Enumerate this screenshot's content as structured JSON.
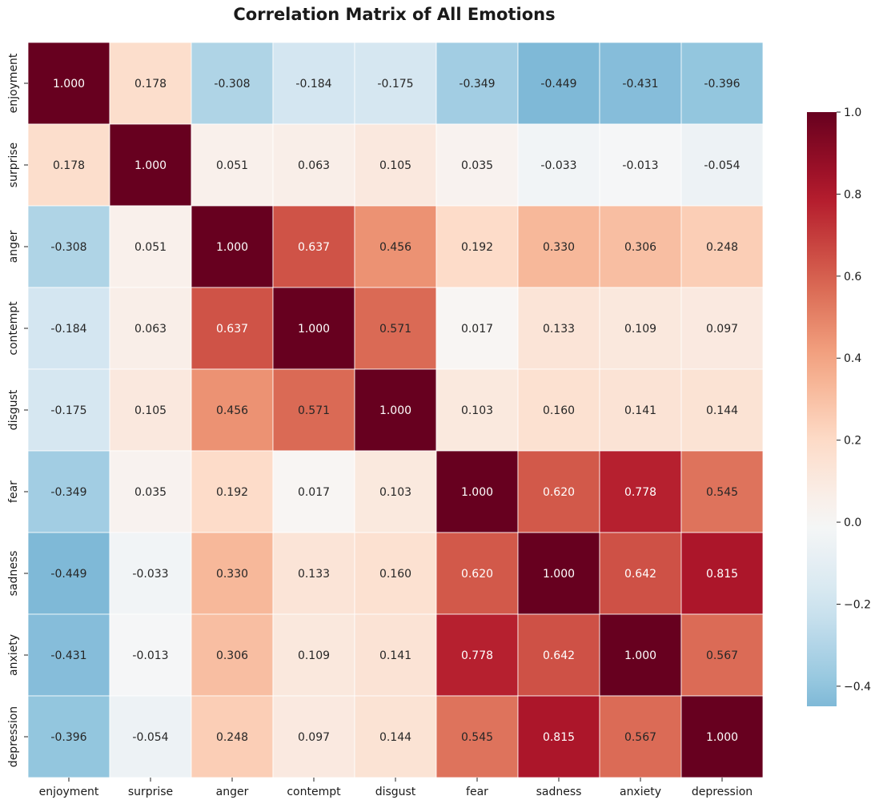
{
  "chart_data": {
    "type": "heatmap",
    "title": "Correlation Matrix of All Emotions",
    "labels": [
      "enjoyment",
      "surprise",
      "anger",
      "contempt",
      "disgust",
      "fear",
      "sadness",
      "anxiety",
      "depression"
    ],
    "matrix": [
      [
        1.0,
        0.178,
        -0.308,
        -0.184,
        -0.175,
        -0.349,
        -0.449,
        -0.431,
        -0.396
      ],
      [
        0.178,
        1.0,
        0.051,
        0.063,
        0.105,
        0.035,
        -0.033,
        -0.013,
        -0.054
      ],
      [
        -0.308,
        0.051,
        1.0,
        0.637,
        0.456,
        0.192,
        0.33,
        0.306,
        0.248
      ],
      [
        -0.184,
        0.063,
        0.637,
        1.0,
        0.571,
        0.017,
        0.133,
        0.109,
        0.097
      ],
      [
        -0.175,
        0.105,
        0.456,
        0.571,
        1.0,
        0.103,
        0.16,
        0.141,
        0.144
      ],
      [
        -0.349,
        0.035,
        0.192,
        0.017,
        0.103,
        1.0,
        0.62,
        0.778,
        0.545
      ],
      [
        -0.449,
        -0.033,
        0.33,
        0.133,
        0.16,
        0.62,
        1.0,
        0.642,
        0.815
      ],
      [
        -0.431,
        -0.013,
        0.306,
        0.109,
        0.141,
        0.778,
        0.642,
        1.0,
        0.567
      ],
      [
        -0.396,
        -0.054,
        0.248,
        0.097,
        0.144,
        0.545,
        0.815,
        0.567,
        1.0
      ]
    ],
    "value_format": "3 decimals",
    "colormap": "RdBu_r",
    "center": 0,
    "colorbar": {
      "range": [
        -0.449,
        1.0
      ],
      "ticks": [
        -0.4,
        -0.2,
        0.0,
        0.2,
        0.4,
        0.6,
        0.8,
        1.0
      ],
      "tick_labels": [
        "−0.4",
        "−0.2",
        "0.0",
        "0.2",
        "0.4",
        "0.6",
        "0.8",
        "1.0"
      ]
    },
    "grid": false,
    "legend": "colorbar right"
  }
}
